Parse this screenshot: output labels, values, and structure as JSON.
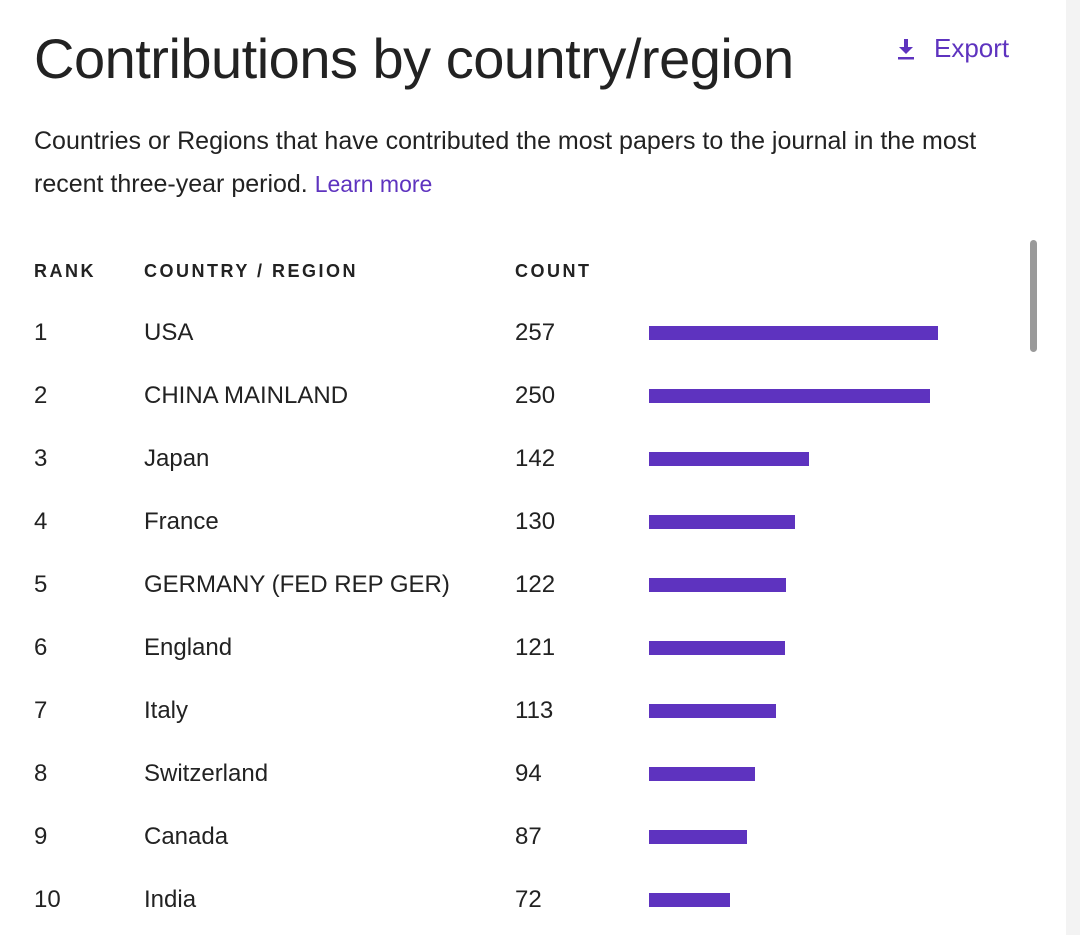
{
  "header": {
    "title": "Contributions by country/region",
    "export_label": "Export"
  },
  "description": {
    "text": "Countries or Regions that have contributed the most papers to the journal in the most recent three-year period.",
    "link": "Learn more"
  },
  "table": {
    "columns": {
      "rank": "RANK",
      "country": "COUNTRY / REGION",
      "count": "COUNT"
    },
    "rows": [
      {
        "rank": "1",
        "country": "USA",
        "count": "257"
      },
      {
        "rank": "2",
        "country": "CHINA MAINLAND",
        "count": "250"
      },
      {
        "rank": "3",
        "country": "Japan",
        "count": "142"
      },
      {
        "rank": "4",
        "country": "France",
        "count": "130"
      },
      {
        "rank": "5",
        "country": "GERMANY (FED REP GER)",
        "count": "122"
      },
      {
        "rank": "6",
        "country": "England",
        "count": "121"
      },
      {
        "rank": "7",
        "country": "Italy",
        "count": "113"
      },
      {
        "rank": "8",
        "country": "Switzerland",
        "count": "94"
      },
      {
        "rank": "9",
        "country": "Canada",
        "count": "87"
      },
      {
        "rank": "10",
        "country": "India",
        "count": "72"
      }
    ]
  },
  "colors": {
    "accent": "#5e33bf",
    "text": "#222222"
  },
  "icons": {
    "export": "download-icon"
  }
}
